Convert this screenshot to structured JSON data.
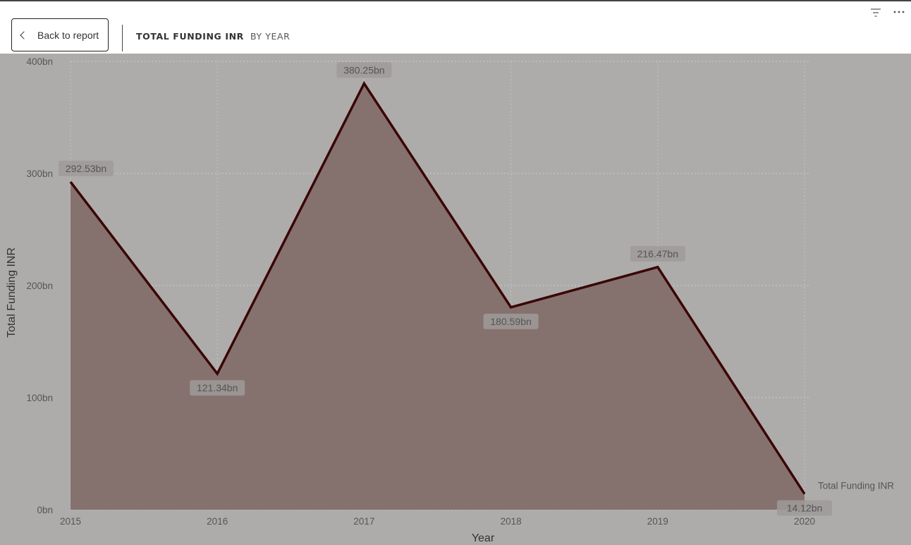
{
  "header": {
    "back_label": "Back to report",
    "title": "TOTAL FUNDING INR",
    "subtitle": "BY YEAR"
  },
  "icons": {
    "back": "chevron-left-icon",
    "filter": "filter-icon",
    "more": "more-options-icon"
  },
  "colors": {
    "line": "#3a0606",
    "area": "#85726f",
    "background": "#aeacab"
  },
  "chart_data": {
    "type": "area",
    "x": [
      "2015",
      "2016",
      "2017",
      "2018",
      "2019",
      "2020"
    ],
    "series": [
      {
        "name": "Total Funding INR",
        "values": [
          292.53,
          121.34,
          380.25,
          180.59,
          216.47,
          14.12
        ],
        "labels": [
          "292.53bn",
          "121.34bn",
          "380.25bn",
          "180.59bn",
          "216.47bn",
          "14.12bn"
        ]
      }
    ],
    "xlabel": "Year",
    "ylabel": "Total Funding INR",
    "ylim": [
      0,
      400
    ],
    "yticks": [
      0,
      100,
      200,
      300,
      400
    ],
    "ytick_labels": [
      "0bn",
      "100bn",
      "200bn",
      "300bn",
      "400bn"
    ],
    "grid": true,
    "legend": "end-of-line label"
  }
}
